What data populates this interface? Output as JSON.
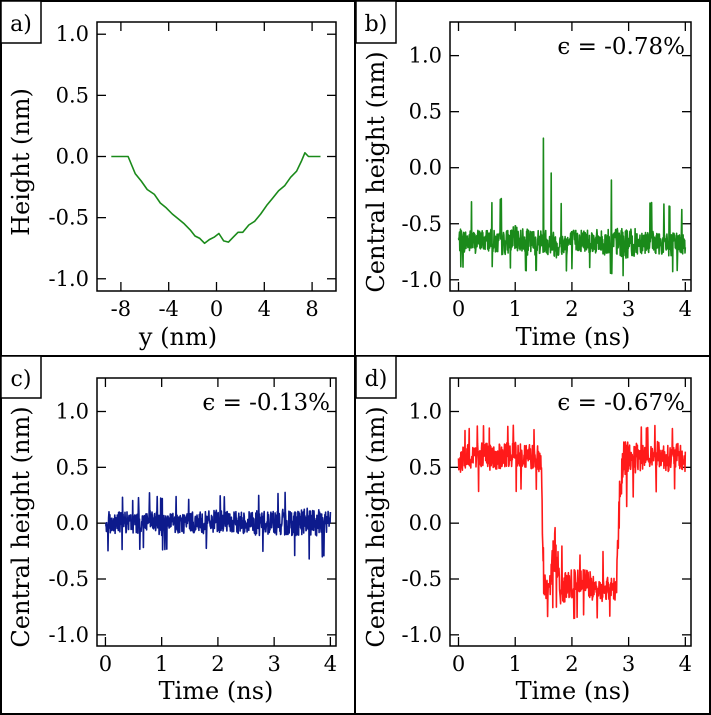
{
  "chart_data": [
    {
      "panel": "a)",
      "type": "line",
      "xlabel": "y (nm)",
      "ylabel": "Height (nm)",
      "xlim": [
        -10,
        10
      ],
      "ylim": [
        -1.1,
        1.1
      ],
      "xticks": [
        -8,
        -4,
        0,
        4,
        8
      ],
      "yticks": [
        1.0,
        0.5,
        0.0,
        -0.5,
        -1.0
      ],
      "xtick_labels": [
        "-8",
        "-4",
        "0",
        "4",
        "8"
      ],
      "ytick_labels": [
        "1.0",
        "0.5",
        "0.0",
        "-0.5",
        "-1.0"
      ],
      "annotation": "",
      "series": [
        {
          "color": "#1a8a1a",
          "x": [
            -8.8,
            -7.4,
            -6.8,
            -6.3,
            -5.8,
            -5.2,
            -4.7,
            -4.2,
            -3.7,
            -3.2,
            -2.7,
            -2.2,
            -1.8,
            -1.4,
            -1.0,
            -0.6,
            -0.2,
            0.2,
            0.6,
            1.0,
            1.4,
            1.8,
            2.2,
            2.7,
            3.2,
            3.7,
            4.2,
            4.7,
            5.2,
            5.7,
            6.2,
            6.7,
            7.1,
            7.4,
            7.7,
            8.7
          ],
          "y": [
            0.0,
            0.0,
            -0.14,
            -0.2,
            -0.27,
            -0.31,
            -0.38,
            -0.42,
            -0.47,
            -0.51,
            -0.55,
            -0.6,
            -0.65,
            -0.67,
            -0.71,
            -0.68,
            -0.66,
            -0.63,
            -0.69,
            -0.7,
            -0.66,
            -0.62,
            -0.62,
            -0.56,
            -0.53,
            -0.47,
            -0.4,
            -0.34,
            -0.28,
            -0.24,
            -0.17,
            -0.12,
            -0.04,
            0.03,
            0.0,
            0.0
          ]
        }
      ]
    },
    {
      "panel": "b)",
      "type": "line",
      "xlabel": "Time (ns)",
      "ylabel": "Central height (nm)",
      "xlim": [
        -0.15,
        4.1
      ],
      "ylim": [
        -1.1,
        1.3
      ],
      "xticks": [
        0,
        1,
        2,
        3,
        4
      ],
      "yticks": [
        1.0,
        0.5,
        0.0,
        -0.5,
        -1.0
      ],
      "xtick_labels": [
        "0",
        "1",
        "2",
        "3",
        "4"
      ],
      "ytick_labels": [
        "1.0",
        "0.5",
        "0.0",
        "-0.5",
        "-1.0"
      ],
      "annotation": "ϵ = -0.78%",
      "series": [
        {
          "color": "#1a8a1a",
          "x": [
            0.0,
            0.25,
            0.5,
            0.75,
            1.0,
            1.25,
            1.5,
            1.75,
            2.0,
            2.25,
            2.5,
            2.75,
            3.0,
            3.25,
            3.5,
            3.75,
            4.0
          ],
          "y": [
            -0.65,
            -0.66,
            -0.64,
            -0.68,
            -0.63,
            -0.67,
            -0.65,
            -0.69,
            -0.66,
            -0.64,
            -0.67,
            -0.66,
            -0.68,
            -0.65,
            -0.67,
            -0.69,
            -0.66
          ],
          "noise_min": [
            -0.88,
            -0.9,
            -0.86,
            -0.92,
            -0.88,
            -0.93,
            -0.9,
            -0.95,
            -0.9,
            -0.88,
            -0.92,
            -0.95,
            -0.97,
            -0.9,
            -0.88,
            -0.93,
            -0.9
          ],
          "noise_max": [
            -0.35,
            -0.3,
            -0.33,
            -0.28,
            -0.04,
            -0.3,
            0.27,
            -0.32,
            -0.32,
            -0.28,
            -0.3,
            -0.06,
            -0.26,
            -0.33,
            -0.3,
            -0.35,
            -0.38
          ]
        }
      ]
    },
    {
      "panel": "c)",
      "type": "line",
      "xlabel": "Time (ns)",
      "ylabel": "Central height (nm)",
      "xlim": [
        -0.15,
        4.1
      ],
      "ylim": [
        -1.1,
        1.3
      ],
      "xticks": [
        0,
        1,
        2,
        3,
        4
      ],
      "yticks": [
        1.0,
        0.5,
        0.0,
        -0.5,
        -1.0
      ],
      "xtick_labels": [
        "0",
        "1",
        "2",
        "3",
        "4"
      ],
      "ytick_labels": [
        "1.0",
        "0.5",
        "0.0",
        "-0.5",
        "-1.0"
      ],
      "annotation": "ϵ = -0.13%",
      "series": [
        {
          "color": "#0d1a8c",
          "x": [
            0.0,
            0.25,
            0.5,
            0.75,
            1.0,
            1.25,
            1.5,
            1.75,
            2.0,
            2.25,
            2.5,
            2.75,
            3.0,
            3.25,
            3.5,
            3.75,
            4.0
          ],
          "y": [
            0.0,
            0.01,
            0.0,
            0.02,
            -0.01,
            0.0,
            0.01,
            0.0,
            0.02,
            0.0,
            0.01,
            0.0,
            0.01,
            0.0,
            0.02,
            0.0,
            0.01
          ],
          "noise_min": [
            -0.25,
            -0.23,
            -0.26,
            -0.2,
            -0.24,
            -0.22,
            -0.25,
            -0.23,
            -0.2,
            -0.24,
            -0.22,
            -0.25,
            -0.26,
            -0.28,
            -0.3,
            -0.34,
            -0.25
          ],
          "noise_max": [
            0.23,
            0.24,
            0.2,
            0.28,
            0.22,
            0.24,
            0.21,
            0.23,
            0.25,
            0.22,
            0.24,
            0.25,
            0.26,
            0.28,
            0.3,
            0.27,
            0.24
          ]
        }
      ]
    },
    {
      "panel": "d)",
      "type": "line",
      "xlabel": "Time (ns)",
      "ylabel": "Central height (nm)",
      "xlim": [
        -0.15,
        4.1
      ],
      "ylim": [
        -1.1,
        1.3
      ],
      "xticks": [
        0,
        1,
        2,
        3,
        4
      ],
      "yticks": [
        1.0,
        0.5,
        0.0,
        -0.5,
        -1.0
      ],
      "xtick_labels": [
        "0",
        "1",
        "2",
        "3",
        "4"
      ],
      "ytick_labels": [
        "1.0",
        "0.5",
        "0.0",
        "-0.5",
        "-1.0"
      ],
      "annotation": "ϵ = -0.67%",
      "series": [
        {
          "color": "#ff1a1a",
          "x": [
            0.0,
            0.2,
            0.4,
            0.6,
            0.8,
            1.0,
            1.2,
            1.4,
            1.46,
            1.5,
            1.6,
            1.7,
            1.8,
            2.0,
            2.2,
            2.4,
            2.6,
            2.78,
            2.84,
            2.9,
            3.1,
            3.3,
            3.5,
            3.7,
            3.9,
            4.0
          ],
          "y": [
            0.55,
            0.6,
            0.62,
            0.58,
            0.6,
            0.63,
            0.6,
            0.58,
            0.5,
            -0.55,
            -0.6,
            -0.2,
            -0.6,
            -0.55,
            -0.5,
            -0.6,
            -0.58,
            -0.6,
            0.2,
            0.6,
            0.58,
            0.6,
            0.62,
            0.58,
            0.6,
            0.55
          ],
          "noise_min": [
            0.25,
            0.3,
            0.28,
            0.32,
            0.3,
            0.28,
            0.33,
            0.3,
            0.3,
            -0.8,
            -0.85,
            -0.7,
            -0.9,
            -0.86,
            -0.82,
            -0.85,
            -0.84,
            -0.82,
            -0.7,
            0.1,
            0.25,
            0.3,
            0.28,
            0.32,
            0.3,
            0.3
          ],
          "noise_max": [
            0.8,
            0.85,
            0.88,
            0.84,
            0.86,
            0.88,
            0.85,
            0.83,
            0.82,
            -0.3,
            -0.35,
            0.85,
            -0.2,
            -0.25,
            -0.3,
            -0.24,
            -0.26,
            -0.3,
            0.7,
            0.98,
            0.88,
            0.85,
            0.88,
            0.84,
            0.86,
            0.82
          ]
        }
      ]
    }
  ]
}
